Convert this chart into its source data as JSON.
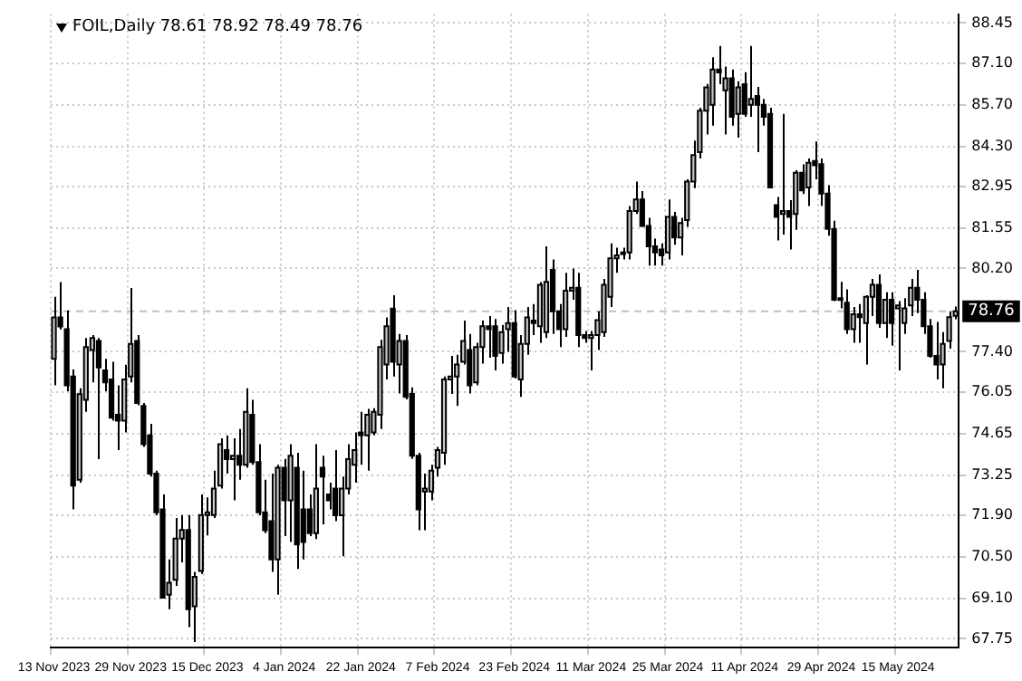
{
  "chart_data": {
    "type": "candlestick",
    "title": "FOIL,Daily 78.61 78.92 78.49 78.76",
    "categories": [
      "13 Nov 2023",
      null,
      null,
      null,
      null,
      null,
      null,
      null,
      null,
      null,
      null,
      null,
      "29 Nov 2023",
      null,
      null,
      null,
      null,
      null,
      null,
      null,
      null,
      null,
      null,
      null,
      "15 Dec 2023",
      null,
      null,
      null,
      null,
      null,
      null,
      null,
      null,
      null,
      null,
      null,
      "4 Jan 2024",
      null,
      null,
      null,
      null,
      null,
      null,
      null,
      null,
      null,
      null,
      null,
      "22 Jan 2024",
      null,
      null,
      null,
      null,
      null,
      null,
      null,
      null,
      null,
      null,
      null,
      "7 Feb 2024",
      null,
      null,
      null,
      null,
      null,
      null,
      null,
      null,
      null,
      null,
      null,
      "23 Feb 2024",
      null,
      null,
      null,
      null,
      null,
      null,
      null,
      null,
      null,
      null,
      null,
      "11 Mar 2024",
      null,
      null,
      null,
      null,
      null,
      null,
      null,
      null,
      null,
      null,
      null,
      "25 Mar 2024",
      null,
      null,
      null,
      null,
      null,
      null,
      null,
      null,
      null,
      null,
      null,
      "11 Apr 2024",
      null,
      null,
      null,
      null,
      null,
      null,
      null,
      null,
      null,
      null,
      null,
      "29 Apr 2024",
      null,
      null,
      null,
      null,
      null,
      null,
      null,
      null,
      null,
      null,
      null,
      "15 May 2024",
      null,
      null,
      null,
      null,
      null,
      null,
      null,
      null,
      null
    ],
    "ohlc": [
      [
        77.16,
        79.25,
        76.27,
        78.55
      ],
      [
        78.55,
        79.74,
        78.15,
        78.25
      ],
      [
        78.16,
        78.79,
        76.07,
        76.27
      ],
      [
        76.57,
        76.8,
        72.1,
        72.9
      ],
      [
        73.1,
        76.17,
        73.0,
        75.97
      ],
      [
        75.78,
        77.86,
        75.38,
        77.56
      ],
      [
        77.46,
        77.96,
        76.37,
        77.86
      ],
      [
        77.76,
        77.86,
        73.79,
        76.87
      ],
      [
        76.77,
        77.16,
        76.07,
        76.37
      ],
      [
        76.47,
        77.06,
        75.08,
        75.18
      ],
      [
        75.28,
        76.27,
        74.09,
        75.08
      ],
      [
        75.08,
        76.96,
        74.69,
        76.47
      ],
      [
        76.57,
        79.54,
        76.37,
        77.66
      ],
      [
        77.76,
        77.96,
        75.6,
        75.68
      ],
      [
        75.58,
        75.68,
        74.2,
        74.29
      ],
      [
        74.59,
        74.98,
        73.2,
        73.3
      ],
      [
        73.3,
        73.4,
        71.9,
        72.0
      ],
      [
        72.1,
        72.6,
        69.1,
        69.13
      ],
      [
        69.23,
        70.42,
        68.74,
        69.63
      ],
      [
        69.73,
        71.81,
        69.53,
        71.12
      ],
      [
        71.12,
        71.91,
        70.32,
        71.41
      ],
      [
        71.41,
        71.91,
        68.14,
        68.74
      ],
      [
        68.84,
        70.0,
        67.64,
        69.83
      ],
      [
        70.03,
        72.6,
        69.93,
        71.91
      ],
      [
        71.91,
        72.5,
        71.22,
        72.0
      ],
      [
        71.91,
        73.4,
        71.81,
        72.8
      ],
      [
        72.9,
        74.49,
        72.8,
        74.29
      ],
      [
        74.09,
        74.59,
        73.3,
        73.79
      ],
      [
        73.79,
        74.49,
        72.4,
        73.9
      ],
      [
        73.9,
        74.8,
        73.1,
        73.6
      ],
      [
        73.6,
        76.17,
        73.5,
        75.38
      ],
      [
        75.28,
        75.78,
        73.6,
        73.69
      ],
      [
        73.69,
        74.29,
        71.9,
        72.0
      ],
      [
        72.0,
        73.1,
        71.3,
        71.4
      ],
      [
        71.7,
        73.3,
        70.0,
        70.42
      ],
      [
        70.42,
        73.6,
        69.23,
        73.5
      ],
      [
        73.5,
        73.8,
        71.2,
        72.4
      ],
      [
        72.4,
        74.29,
        71.0,
        73.9
      ],
      [
        73.5,
        74.0,
        70.1,
        70.92
      ],
      [
        72.1,
        73.4,
        70.42,
        71.0
      ],
      [
        72.1,
        72.6,
        71.2,
        71.3
      ],
      [
        71.3,
        74.29,
        71.1,
        72.8
      ],
      [
        73.5,
        73.9,
        71.6,
        73.2
      ],
      [
        72.6,
        73.0,
        72.1,
        72.4
      ],
      [
        72.8,
        74.09,
        71.7,
        71.9
      ],
      [
        71.9,
        73.2,
        70.52,
        72.8
      ],
      [
        72.8,
        74.29,
        72.6,
        73.79
      ],
      [
        73.6,
        74.69,
        73.0,
        74.09
      ],
      [
        74.69,
        75.38,
        73.6,
        74.59
      ],
      [
        74.59,
        75.48,
        73.4,
        75.28
      ],
      [
        74.69,
        75.5,
        74.59,
        75.38
      ],
      [
        75.28,
        77.8,
        74.8,
        77.56
      ],
      [
        76.97,
        78.55,
        76.47,
        78.26
      ],
      [
        78.85,
        79.3,
        76.57,
        77.06
      ],
      [
        76.97,
        78.0,
        76.0,
        77.76
      ],
      [
        77.76,
        77.96,
        75.8,
        75.88
      ],
      [
        75.98,
        76.2,
        73.8,
        73.9
      ],
      [
        73.9,
        74.0,
        71.4,
        72.1
      ],
      [
        72.7,
        73.3,
        71.4,
        72.8
      ],
      [
        72.7,
        73.6,
        72.4,
        73.4
      ],
      [
        73.5,
        74.2,
        73.2,
        74.09
      ],
      [
        74.0,
        76.57,
        73.6,
        76.47
      ],
      [
        76.47,
        77.26,
        75.98,
        76.57
      ],
      [
        76.57,
        77.3,
        75.58,
        76.97
      ],
      [
        77.06,
        78.45,
        76.97,
        77.76
      ],
      [
        77.46,
        78.0,
        76.0,
        76.27
      ],
      [
        76.37,
        77.7,
        76.27,
        77.56
      ],
      [
        77.56,
        78.45,
        77.0,
        78.26
      ],
      [
        78.26,
        78.6,
        77.2,
        78.16
      ],
      [
        78.26,
        78.5,
        76.77,
        77.26
      ],
      [
        77.36,
        78.3,
        77.0,
        78.06
      ],
      [
        78.16,
        78.9,
        77.4,
        78.36
      ],
      [
        78.36,
        78.8,
        76.5,
        76.57
      ],
      [
        76.47,
        77.96,
        75.88,
        77.66
      ],
      [
        77.66,
        78.9,
        77.3,
        78.55
      ],
      [
        78.45,
        79.0,
        77.96,
        78.36
      ],
      [
        78.26,
        79.74,
        77.7,
        79.65
      ],
      [
        78.06,
        80.94,
        77.86,
        79.75
      ],
      [
        80.15,
        80.5,
        78.0,
        78.76
      ],
      [
        78.76,
        79.0,
        77.56,
        78.16
      ],
      [
        78.16,
        80.05,
        77.9,
        79.45
      ],
      [
        79.45,
        80.2,
        79.15,
        79.55
      ],
      [
        79.55,
        80.05,
        77.56,
        77.96
      ],
      [
        77.96,
        78.1,
        77.7,
        77.86
      ],
      [
        77.86,
        78.1,
        76.77,
        77.96
      ],
      [
        77.96,
        78.76,
        77.46,
        78.46
      ],
      [
        78.06,
        79.85,
        77.9,
        79.65
      ],
      [
        79.25,
        81.04,
        78.9,
        80.54
      ],
      [
        80.54,
        80.9,
        80.05,
        80.64
      ],
      [
        80.74,
        80.9,
        80.5,
        80.7
      ],
      [
        80.74,
        82.3,
        80.5,
        82.13
      ],
      [
        82.13,
        83.12,
        82.03,
        82.52
      ],
      [
        82.52,
        82.8,
        81.6,
        81.63
      ],
      [
        81.63,
        81.9,
        80.3,
        80.94
      ],
      [
        80.94,
        81.2,
        80.3,
        80.74
      ],
      [
        80.84,
        81.04,
        80.3,
        80.64
      ],
      [
        80.74,
        82.52,
        80.5,
        81.93
      ],
      [
        81.93,
        82.1,
        81.0,
        81.24
      ],
      [
        81.24,
        81.9,
        80.64,
        81.73
      ],
      [
        81.83,
        83.2,
        81.6,
        83.12
      ],
      [
        83.12,
        84.5,
        82.9,
        84.01
      ],
      [
        84.11,
        85.6,
        83.9,
        85.5
      ],
      [
        85.5,
        86.4,
        84.7,
        86.29
      ],
      [
        85.7,
        87.3,
        85.0,
        86.89
      ],
      [
        86.89,
        87.68,
        86.39,
        86.79
      ],
      [
        86.19,
        86.99,
        84.7,
        86.59
      ],
      [
        86.59,
        86.89,
        85.0,
        85.3
      ],
      [
        85.4,
        86.49,
        84.6,
        86.29
      ],
      [
        86.39,
        86.8,
        85.3,
        85.4
      ],
      [
        85.7,
        87.68,
        85.3,
        85.9
      ],
      [
        86.0,
        86.3,
        84.11,
        85.7
      ],
      [
        85.7,
        85.9,
        85.0,
        85.3
      ],
      [
        85.4,
        85.6,
        82.9,
        82.92
      ],
      [
        82.33,
        82.6,
        81.14,
        81.93
      ],
      [
        82.03,
        85.4,
        81.34,
        82.13
      ],
      [
        82.13,
        82.5,
        80.84,
        81.93
      ],
      [
        82.03,
        83.5,
        81.5,
        83.42
      ],
      [
        83.42,
        83.7,
        82.7,
        82.82
      ],
      [
        82.92,
        83.9,
        82.3,
        83.75
      ],
      [
        83.81,
        84.47,
        83.2,
        83.67
      ],
      [
        83.71,
        83.9,
        82.3,
        82.72
      ],
      [
        82.72,
        83.0,
        81.3,
        81.53
      ],
      [
        81.53,
        81.8,
        79.1,
        79.15
      ],
      [
        79.15,
        79.75,
        78.86,
        79.2
      ],
      [
        79.05,
        79.5,
        78.0,
        78.16
      ],
      [
        78.16,
        78.9,
        77.7,
        78.66
      ],
      [
        78.66,
        79.0,
        77.7,
        78.56
      ],
      [
        78.36,
        79.3,
        76.97,
        79.25
      ],
      [
        79.25,
        79.85,
        78.6,
        79.65
      ],
      [
        79.65,
        80.0,
        78.2,
        78.36
      ],
      [
        78.36,
        79.4,
        77.86,
        79.15
      ],
      [
        79.15,
        79.4,
        77.6,
        78.36
      ],
      [
        78.86,
        79.1,
        76.77,
        78.96
      ],
      [
        78.36,
        79.2,
        78.0,
        78.86
      ],
      [
        78.96,
        79.85,
        78.6,
        79.55
      ],
      [
        79.55,
        80.15,
        78.7,
        79.15
      ],
      [
        79.15,
        79.4,
        78.0,
        78.26
      ],
      [
        78.26,
        78.5,
        77.2,
        77.26
      ],
      [
        77.26,
        78.4,
        76.47,
        76.97
      ],
      [
        76.97,
        78.06,
        76.17,
        77.66
      ],
      [
        77.76,
        78.76,
        77.5,
        78.56
      ],
      [
        78.61,
        78.92,
        78.49,
        78.76
      ]
    ],
    "ylim": [
      67.45,
      88.75
    ],
    "yticks": [
      88.45,
      {
        "value": 87.1,
        "label": "87.10"
      },
      {
        "value": 85.7,
        "label": "85.70"
      },
      {
        "value": 84.3,
        "label": "84.30"
      },
      82.95,
      81.55,
      {
        "value": 80.2,
        "label": "80.20"
      },
      {
        "value": 77.4,
        "label": "77.40"
      },
      76.05,
      74.65,
      73.25,
      {
        "value": 71.9,
        "label": "71.90"
      },
      {
        "value": 70.5,
        "label": "70.50"
      },
      {
        "value": 69.1,
        "label": "69.10"
      },
      67.75
    ],
    "ref_lines": [
      {
        "axis": "y",
        "value": 78.76,
        "label": "78.76",
        "color": "#c0c0c0",
        "line_style": "dashed"
      }
    ],
    "grid": true,
    "legend": false
  }
}
